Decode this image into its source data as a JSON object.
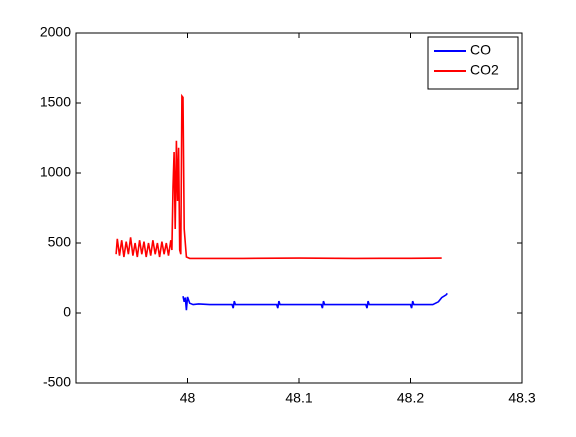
{
  "chart_data": {
    "type": "line",
    "xlim": [
      47.9,
      48.3
    ],
    "xticks": [
      48,
      48.1,
      48.2,
      48.3
    ],
    "ylim": [
      -500,
      2000
    ],
    "yticks": [
      -500,
      0,
      500,
      1000,
      1500,
      2000
    ],
    "legend": "top-right",
    "series": [
      {
        "name": "CO",
        "color": "#0000ff",
        "x": [
          47.996,
          47.997,
          47.998,
          47.999,
          48.0,
          48.002,
          48.005,
          48.01,
          48.02,
          48.04,
          48.041,
          48.042,
          48.043,
          48.06,
          48.08,
          48.081,
          48.082,
          48.083,
          48.1,
          48.12,
          48.121,
          48.122,
          48.123,
          48.14,
          48.16,
          48.161,
          48.162,
          48.163,
          48.18,
          48.2,
          48.201,
          48.202,
          48.203,
          48.22,
          48.225,
          48.228,
          48.232,
          48.233
        ],
        "values": [
          120,
          80,
          110,
          20,
          115,
          70,
          60,
          65,
          60,
          60,
          35,
          85,
          60,
          60,
          60,
          35,
          85,
          60,
          60,
          60,
          35,
          85,
          60,
          60,
          60,
          35,
          85,
          60,
          60,
          60,
          35,
          85,
          60,
          60,
          80,
          110,
          130,
          140
        ]
      },
      {
        "name": "CO2",
        "color": "#ff0000",
        "x": [
          47.936,
          47.937,
          47.939,
          47.941,
          47.943,
          47.945,
          47.947,
          47.949,
          47.951,
          47.953,
          47.955,
          47.957,
          47.959,
          47.961,
          47.963,
          47.965,
          47.967,
          47.969,
          47.971,
          47.973,
          47.975,
          47.977,
          47.979,
          47.981,
          47.983,
          47.985,
          47.986,
          47.987,
          47.988,
          47.989,
          47.99,
          47.991,
          47.992,
          47.993,
          47.994,
          47.995,
          47.996,
          47.997,
          47.999,
          48.002,
          48.05,
          48.1,
          48.15,
          48.2,
          48.228
        ],
        "values": [
          420,
          530,
          410,
          520,
          400,
          510,
          420,
          540,
          410,
          500,
          400,
          520,
          420,
          510,
          400,
          500,
          410,
          520,
          420,
          500,
          400,
          510,
          420,
          500,
          410,
          520,
          450,
          900,
          1150,
          600,
          1230,
          800,
          1180,
          450,
          420,
          1550,
          1540,
          600,
          400,
          390,
          390,
          392,
          390,
          391,
          392
        ]
      }
    ]
  }
}
